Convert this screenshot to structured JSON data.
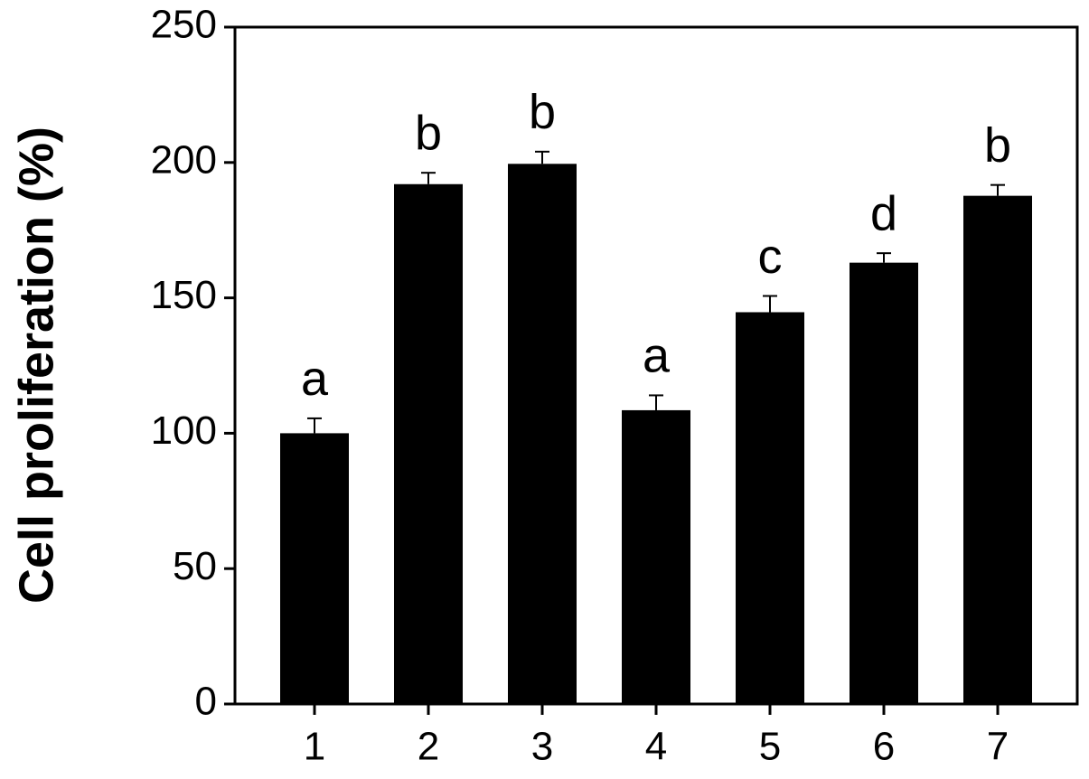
{
  "chart_data": {
    "type": "bar",
    "y_label": "Cell proliferation (%)",
    "categories": [
      "1",
      "2",
      "3",
      "4",
      "5",
      "6",
      "7"
    ],
    "values": [
      100,
      192,
      199.5,
      108.5,
      144.7,
      163,
      187.7
    ],
    "errors": [
      5.5,
      4.2,
      4.5,
      5.5,
      6,
      3.5,
      4
    ],
    "annotations": [
      "a",
      "b",
      "b",
      "a",
      "c",
      "d",
      "b"
    ],
    "color": "#000000",
    "ylim": [
      0,
      250
    ],
    "yticks": [
      0,
      50,
      100,
      150,
      200,
      250
    ]
  }
}
